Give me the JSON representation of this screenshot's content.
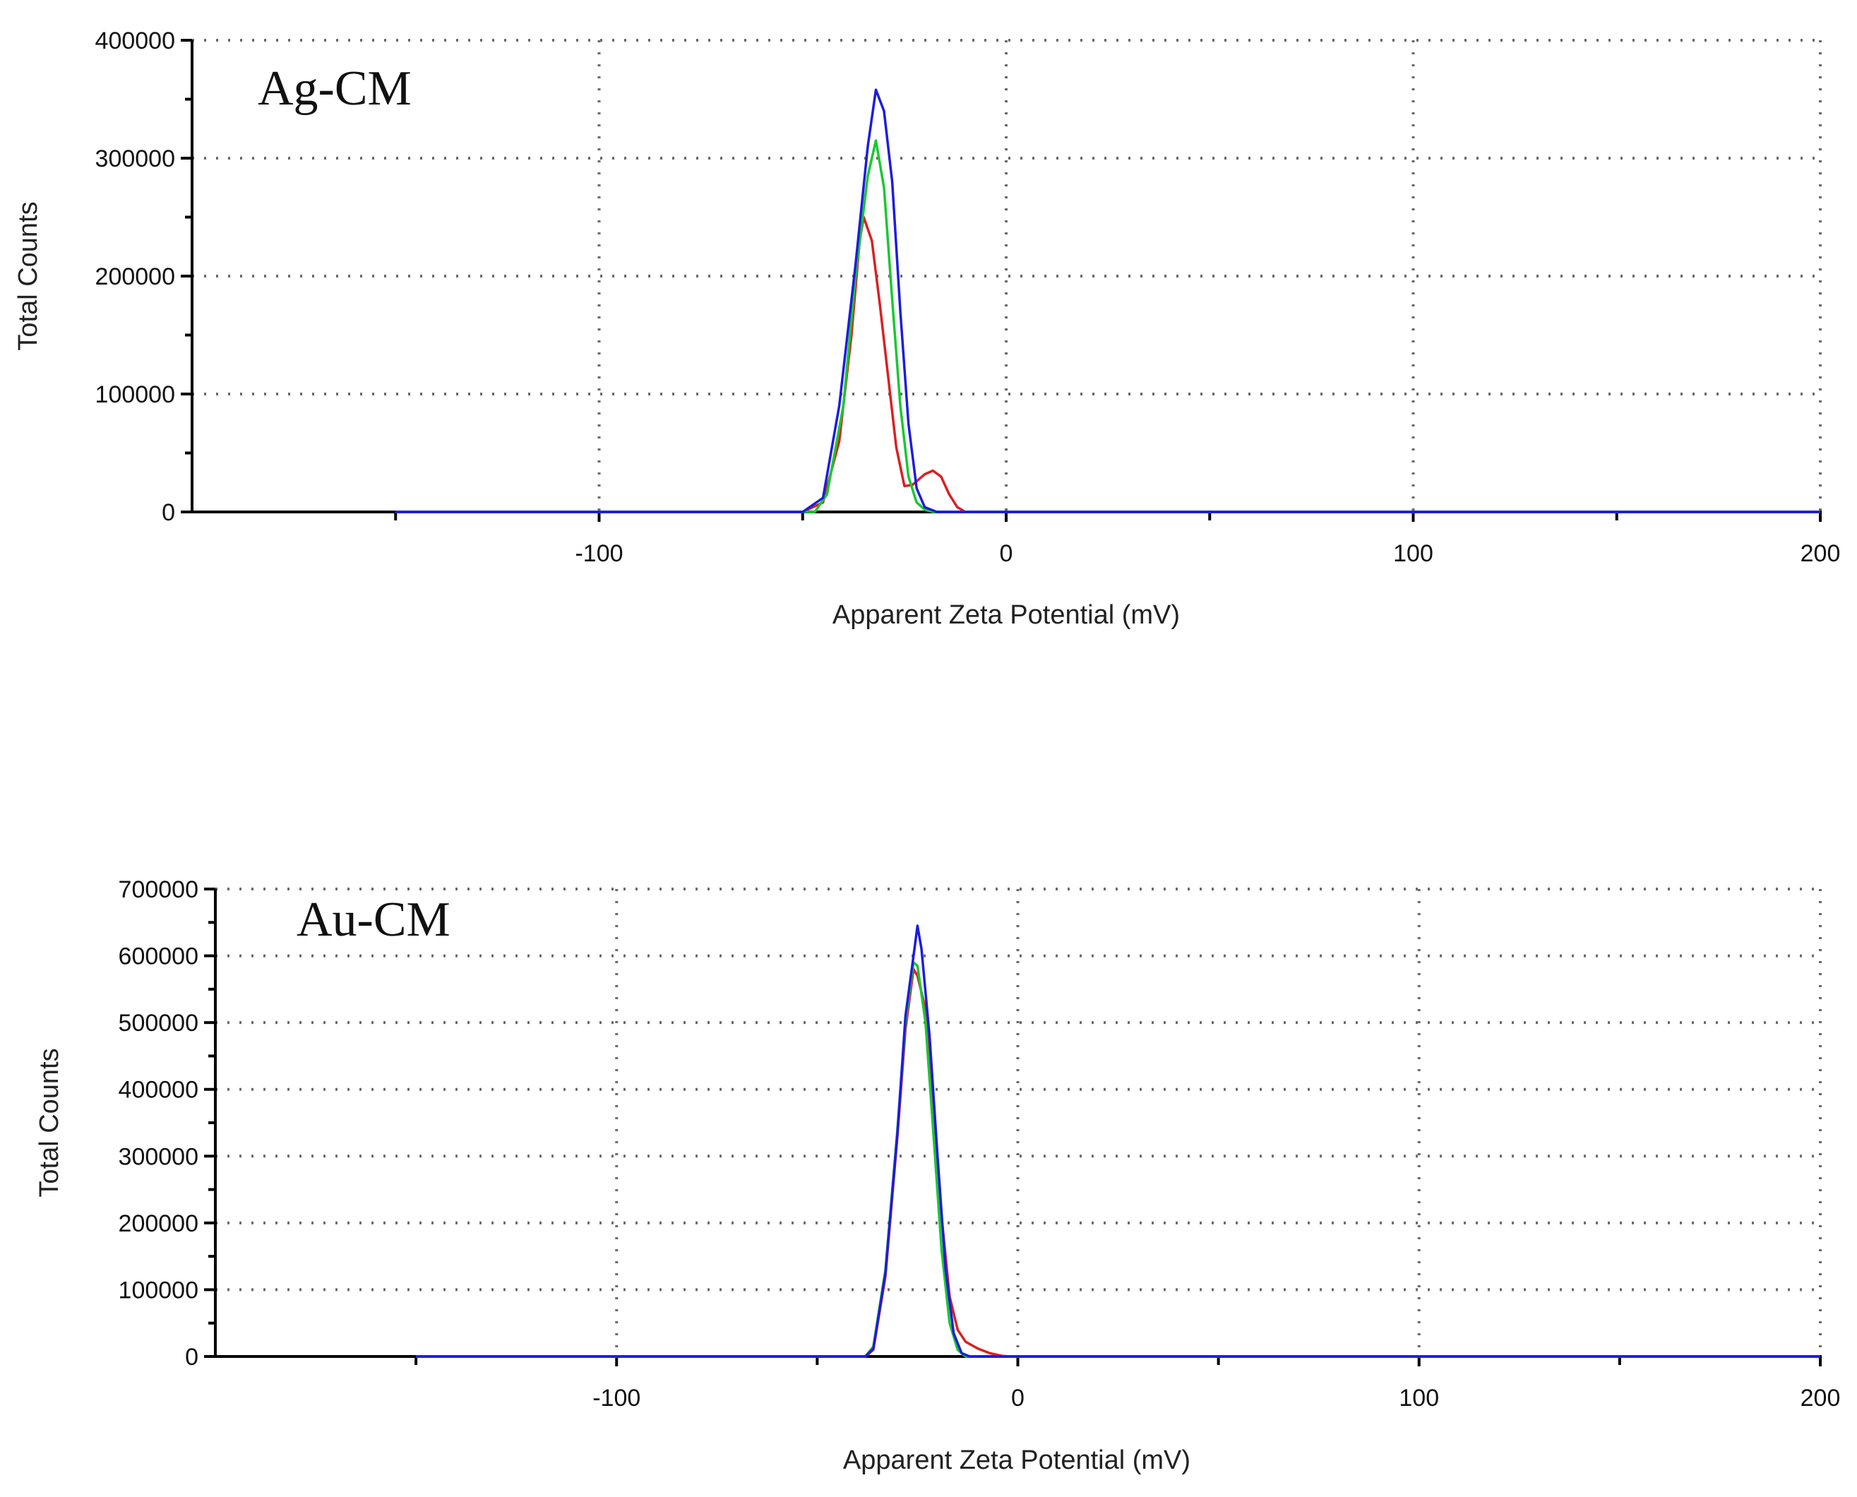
{
  "chart_data": [
    {
      "type": "line",
      "panel_label": "Ag-CM",
      "xlabel": "Apparent Zeta Potential (mV)",
      "ylabel": "Total Counts",
      "xlim": [
        -200,
        200
      ],
      "ylim": [
        0,
        400000
      ],
      "x_ticks": [
        -100,
        0,
        100,
        200
      ],
      "x_minor_ticks": [
        -150,
        -50,
        50,
        150
      ],
      "y_ticks": [
        0,
        100000,
        200000,
        300000,
        400000
      ],
      "grid": true,
      "series": [
        {
          "color": "#d92020",
          "points": [
            [
              -150,
              0
            ],
            [
              -50,
              0
            ],
            [
              -45,
              8000
            ],
            [
              -41,
              60000
            ],
            [
              -38,
              150000
            ],
            [
              -36,
              230000
            ],
            [
              -35,
              250000
            ],
            [
              -33,
              230000
            ],
            [
              -31,
              175000
            ],
            [
              -29,
              115000
            ],
            [
              -27,
              55000
            ],
            [
              -25,
              22000
            ],
            [
              -23,
              23000
            ],
            [
              -20,
              32000
            ],
            [
              -18,
              35000
            ],
            [
              -16,
              30000
            ],
            [
              -14,
              15000
            ],
            [
              -12,
              4000
            ],
            [
              -10,
              0
            ],
            [
              200,
              0
            ]
          ]
        },
        {
          "color": "#19c832",
          "points": [
            [
              -150,
              0
            ],
            [
              -47,
              0
            ],
            [
              -44,
              15000
            ],
            [
              -40,
              90000
            ],
            [
              -37,
              200000
            ],
            [
              -34,
              285000
            ],
            [
              -32,
              315000
            ],
            [
              -30,
              275000
            ],
            [
              -28,
              180000
            ],
            [
              -26,
              90000
            ],
            [
              -24,
              30000
            ],
            [
              -22,
              8000
            ],
            [
              -20,
              2000
            ],
            [
              -18,
              0
            ],
            [
              200,
              0
            ]
          ]
        },
        {
          "color": "#1c1ce0",
          "points": [
            [
              -150,
              0
            ],
            [
              -50,
              0
            ],
            [
              -45,
              12000
            ],
            [
              -41,
              90000
            ],
            [
              -37,
              210000
            ],
            [
              -34,
              310000
            ],
            [
              -32,
              358000
            ],
            [
              -30,
              340000
            ],
            [
              -28,
              280000
            ],
            [
              -26,
              170000
            ],
            [
              -24,
              75000
            ],
            [
              -22,
              20000
            ],
            [
              -20,
              4000
            ],
            [
              -17,
              0
            ],
            [
              200,
              0
            ]
          ]
        }
      ]
    },
    {
      "type": "line",
      "panel_label": "Au-CM",
      "xlabel": "Apparent Zeta Potential (mV)",
      "ylabel": "Total Counts",
      "xlim": [
        -200,
        200
      ],
      "ylim": [
        0,
        700000
      ],
      "x_ticks": [
        -100,
        0,
        100,
        200
      ],
      "x_minor_ticks": [
        -150,
        -50,
        50,
        150
      ],
      "y_ticks": [
        0,
        100000,
        200000,
        300000,
        400000,
        500000,
        600000,
        700000
      ],
      "grid": true,
      "series": [
        {
          "color": "#d92020",
          "points": [
            [
              -150,
              0
            ],
            [
              -38,
              0
            ],
            [
              -36,
              10000
            ],
            [
              -33,
              120000
            ],
            [
              -30,
              330000
            ],
            [
              -28,
              490000
            ],
            [
              -26,
              580000
            ],
            [
              -25,
              570000
            ],
            [
              -23,
              520000
            ],
            [
              -21,
              380000
            ],
            [
              -19,
              210000
            ],
            [
              -17,
              90000
            ],
            [
              -15,
              40000
            ],
            [
              -13,
              22000
            ],
            [
              -10,
              12000
            ],
            [
              -7,
              5000
            ],
            [
              -4,
              1000
            ],
            [
              -2,
              0
            ],
            [
              200,
              0
            ]
          ]
        },
        {
          "color": "#19c832",
          "points": [
            [
              -150,
              0
            ],
            [
              -38,
              0
            ],
            [
              -36,
              15000
            ],
            [
              -33,
              130000
            ],
            [
              -30,
              340000
            ],
            [
              -28,
              500000
            ],
            [
              -26,
              590000
            ],
            [
              -25,
              585000
            ],
            [
              -23,
              500000
            ],
            [
              -21,
              330000
            ],
            [
              -19,
              160000
            ],
            [
              -17,
              50000
            ],
            [
              -15,
              10000
            ],
            [
              -13,
              0
            ],
            [
              200,
              0
            ]
          ]
        },
        {
          "color": "#1c1ce0",
          "points": [
            [
              -150,
              0
            ],
            [
              -38,
              0
            ],
            [
              -36,
              12000
            ],
            [
              -33,
              125000
            ],
            [
              -30,
              335000
            ],
            [
              -28,
              510000
            ],
            [
              -26,
              600000
            ],
            [
              -25,
              645000
            ],
            [
              -24,
              610000
            ],
            [
              -22,
              480000
            ],
            [
              -20,
              300000
            ],
            [
              -18,
              130000
            ],
            [
              -16,
              35000
            ],
            [
              -14,
              5000
            ],
            [
              -12,
              0
            ],
            [
              200,
              0
            ]
          ]
        }
      ]
    }
  ]
}
